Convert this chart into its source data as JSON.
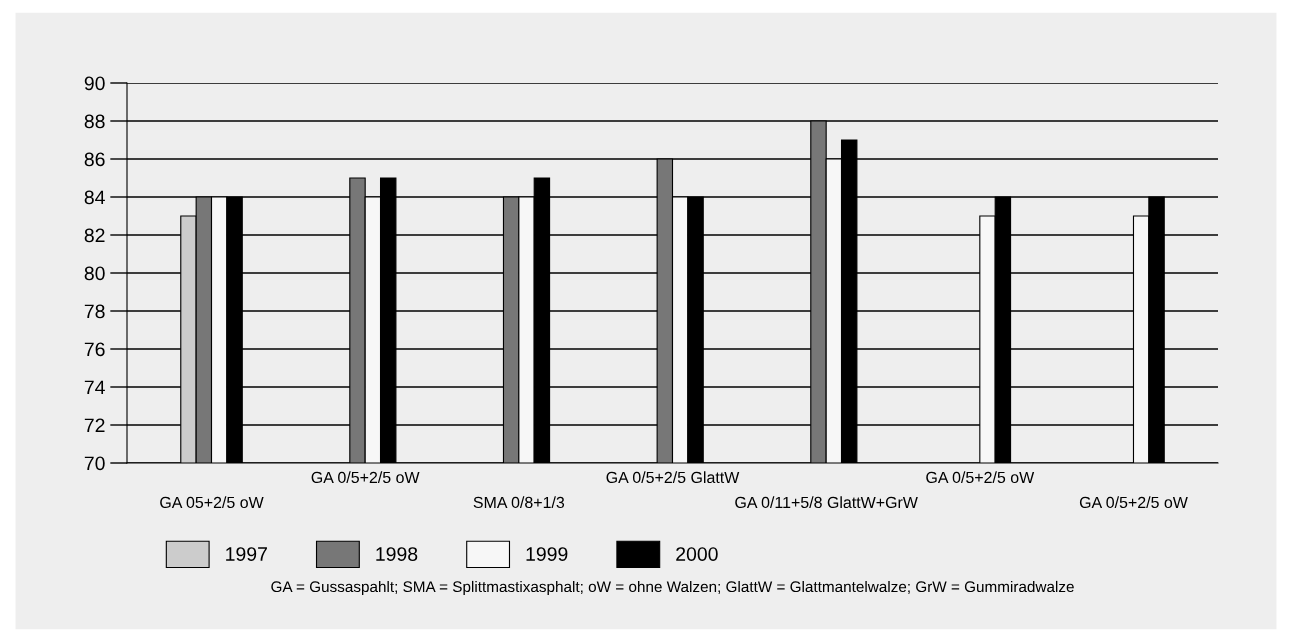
{
  "chart_data": {
    "type": "bar",
    "categories": [
      "GA 05+2/5 oW",
      "GA 0/5+2/5 oW",
      "SMA 0/8+1/3",
      "GA 0/5+2/5 GlattW",
      "GA 0/11+5/8 GlattW+GrW",
      "GA 0/5+2/5 oW",
      "GA 0/5+2/5 oW"
    ],
    "series": [
      {
        "name": "1997",
        "color": "#cccccc",
        "values": [
          83,
          null,
          null,
          null,
          null,
          null,
          null
        ]
      },
      {
        "name": "1998",
        "color": "#777777",
        "values": [
          84,
          85,
          84,
          86,
          88,
          null,
          null
        ]
      },
      {
        "name": "1999",
        "color": "#f7f7f7",
        "values": [
          84,
          84,
          84,
          84,
          86,
          83,
          83
        ]
      },
      {
        "name": "2000",
        "color": "#000000",
        "values": [
          84,
          85,
          85,
          84,
          87,
          84,
          84
        ]
      }
    ],
    "ylim": [
      70,
      90
    ],
    "yticks": [
      70,
      72,
      74,
      76,
      78,
      80,
      82,
      84,
      86,
      88,
      90
    ],
    "grid": "y",
    "legend": "bottom",
    "annotations": [
      "GA = Gussaspahlt; SMA = Splittmastixasphalt; oW = ohne Walzen; GlattW = Glattmantelwalze; GrW = Gummiradwalze"
    ]
  }
}
